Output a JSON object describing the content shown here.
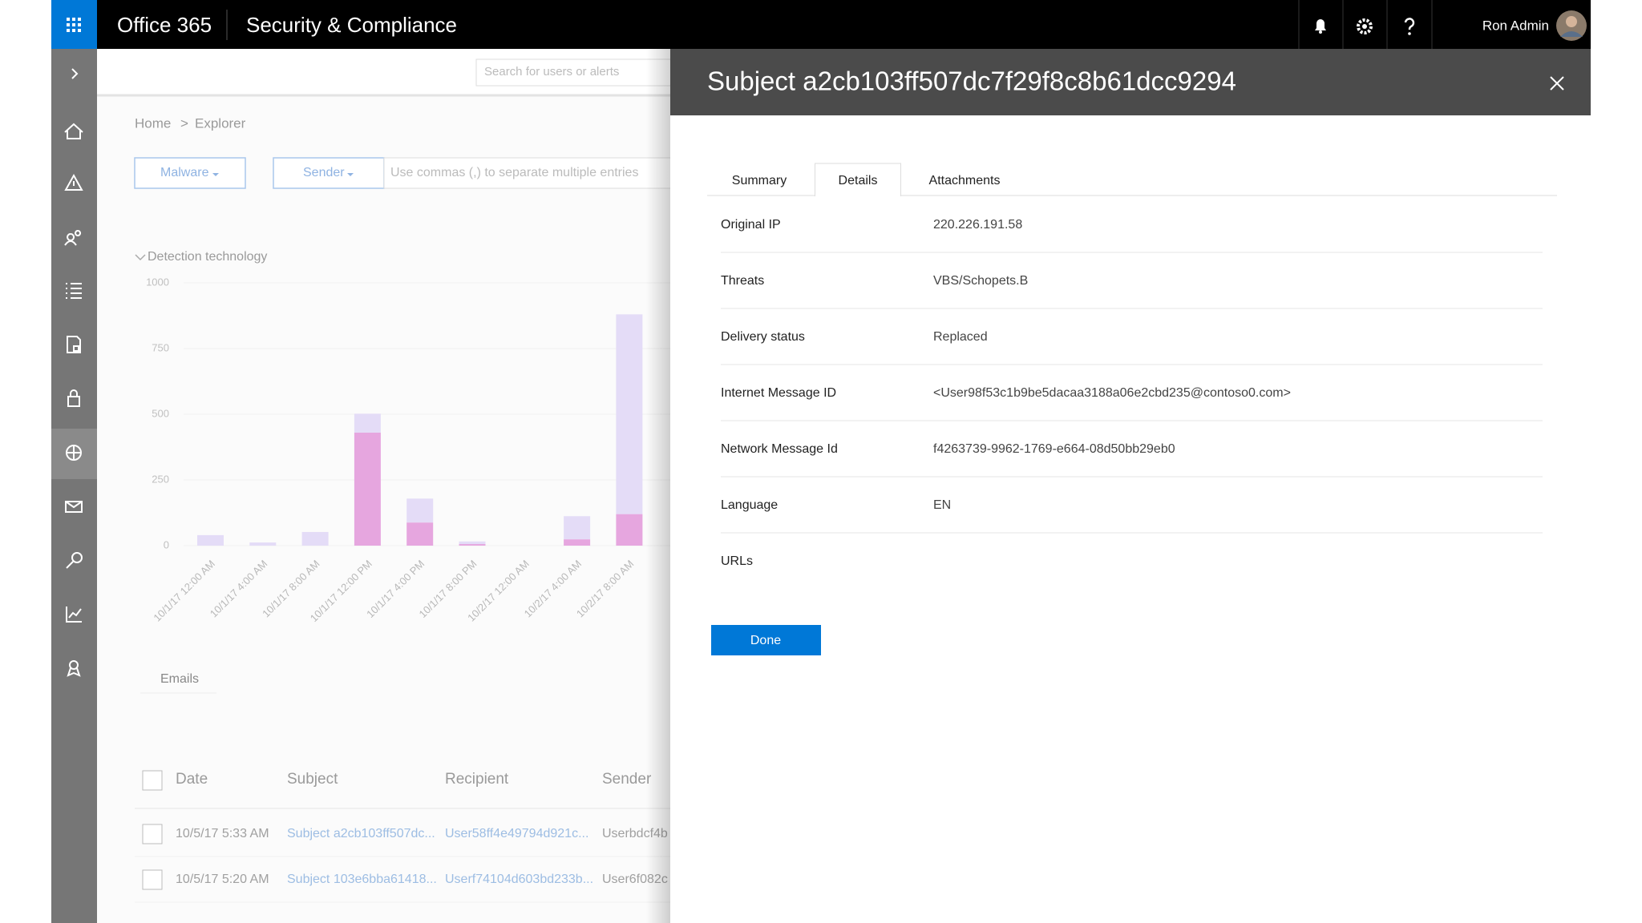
{
  "header": {
    "app_name": "Office 365",
    "title": "Security & Compliance",
    "user": "Ron Admin"
  },
  "search_placeholder": "Search for users or alerts",
  "breadcrumb": [
    "Home",
    "Explorer"
  ],
  "breadcrumb_separator": ">",
  "filters": {
    "malware": "Malware",
    "sender": "Sender",
    "placeholder": "Use commas (,) to separate multiple entries"
  },
  "chart_data": {
    "type": "bar",
    "stacked": true,
    "legend_title": "Detection technology",
    "categories": [
      "10/1/17 12:00 AM",
      "10/1/17 4:00 AM",
      "10/1/17 8:00 AM",
      "10/1/17 12:00 PM",
      "10/1/17 4:00 PM",
      "10/1/17 8:00 PM",
      "10/2/17 12:00 AM",
      "10/2/17 4:00 AM",
      "10/2/17 8:00 AM"
    ],
    "series": [
      {
        "color": "#e6a6df",
        "values": [
          0,
          0,
          0,
          430,
          88,
          6,
          0,
          24,
          120
        ]
      },
      {
        "color": "#e4dcf7",
        "values": [
          40,
          12,
          52,
          72,
          91,
          10,
          0,
          88,
          760
        ]
      }
    ],
    "ylim": [
      0,
      1000
    ],
    "yticks": [
      0,
      250,
      500,
      750,
      1000
    ],
    "grid": true
  },
  "emails_tab": "Emails",
  "table": {
    "columns": [
      "Date",
      "Subject",
      "Recipient",
      "Sender"
    ],
    "rows": [
      [
        "10/5/17 5:33 AM",
        "Subject a2cb103ff507dc...",
        "User58ff4e49794d921c...",
        "Userbdcf4b"
      ],
      [
        "10/5/17 5:20 AM",
        "Subject 103e6bba61418...",
        "Userf74104d603bd233b...",
        "User6f082c"
      ]
    ]
  },
  "panel": {
    "title": "Subject a2cb103ff507dc7f29f8c8b61dcc9294",
    "tabs": [
      "Summary",
      "Details",
      "Attachments"
    ],
    "selected_tab": 1,
    "fields": [
      {
        "label": "Original IP",
        "value": "220.226.191.58"
      },
      {
        "label": "Threats",
        "value": "VBS/Schopets.B"
      },
      {
        "label": "Delivery status",
        "value": "Replaced"
      },
      {
        "label": "Internet Message ID",
        "value": "<User98f53c1b9be5dacaa3188a06e2cbd235@contoso0.com>"
      },
      {
        "label": "Network Message Id",
        "value": "f4263739-9962-1769-e664-08d50bb29eb0"
      },
      {
        "label": "Language",
        "value": "EN"
      },
      {
        "label": "URLs"
      }
    ],
    "done": "Done"
  }
}
